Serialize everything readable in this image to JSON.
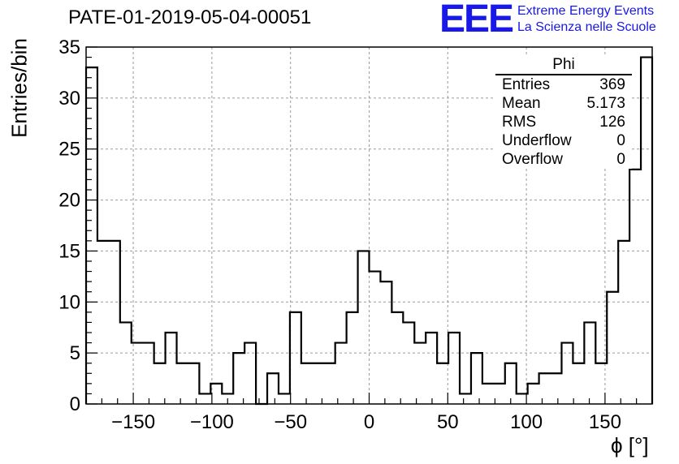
{
  "title": "PATE-01-2019-05-04-00051",
  "logo": {
    "mark": "EEE",
    "line1": "Extreme Energy Events",
    "line2": "La Scienza nelle Scuole",
    "color": "#1818e8"
  },
  "stats": {
    "name": "Phi",
    "rows": [
      {
        "label": "Entries",
        "value": "369"
      },
      {
        "label": "Mean",
        "value": "5.173"
      },
      {
        "label": "RMS",
        "value": "126"
      },
      {
        "label": "Underflow",
        "value": "0"
      },
      {
        "label": "Overflow",
        "value": "0"
      }
    ]
  },
  "chart_data": {
    "type": "histogram",
    "title": "PATE-01-2019-05-04-00051",
    "xlabel": "ϕ [°]",
    "ylabel": "Entries/bin",
    "xlim": [
      -180,
      180
    ],
    "ylim": [
      0,
      35
    ],
    "bin_width": 7.2,
    "grid": true,
    "xticks": [
      -150,
      -100,
      -50,
      0,
      50,
      100,
      150
    ],
    "xtick_labels": [
      "−150",
      "−100",
      "−50",
      "0",
      "50",
      "100",
      "150"
    ],
    "yticks": [
      0,
      5,
      10,
      15,
      20,
      25,
      30,
      35
    ],
    "ytick_labels": [
      "0",
      "5",
      "10",
      "15",
      "20",
      "25",
      "30",
      "35"
    ],
    "values": [
      33,
      16,
      16,
      8,
      6,
      6,
      4,
      7,
      4,
      4,
      1,
      2,
      1,
      5,
      6,
      0,
      3,
      1,
      9,
      4,
      4,
      4,
      6,
      9,
      15,
      13,
      12,
      9,
      8,
      6,
      7,
      4,
      7,
      1,
      5,
      2,
      2,
      4,
      1,
      2,
      3,
      3,
      6,
      4,
      8,
      4,
      11,
      16,
      23,
      34
    ],
    "line_color": "#000000",
    "legend": "top-right"
  }
}
